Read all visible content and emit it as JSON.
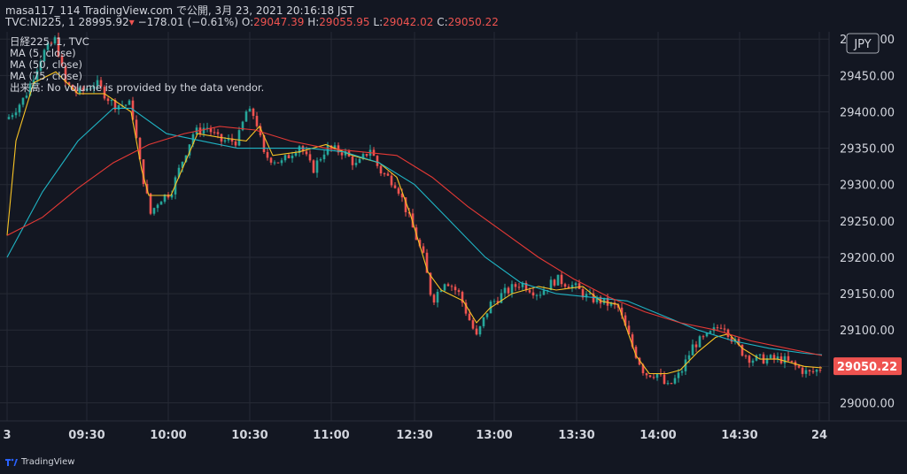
{
  "header": {
    "line1": "masa117_114 TradingView.com で公開, 3月 23, 2021 20:16:18 JST",
    "symbol": "TVC:NI225, 1",
    "last": "28995.92",
    "change": "−178.01 (−0.61%)",
    "o_label": "O:",
    "o_value": "29047.39",
    "h_label": "H:",
    "h_value": "29055.95",
    "l_label": "L:",
    "l_value": "29042.02",
    "c_label": "C:",
    "c_value": "29050.22"
  },
  "legend": [
    "日経225, 1, TVC",
    "MA (5, close)",
    "MA (50, close)",
    "MA (75, close)",
    "出来高: No volume is provided by the data vendor."
  ],
  "currency_label": "JPY",
  "price_tag": "29050.22",
  "footer": {
    "brand": "TradingView"
  },
  "colors": {
    "background": "#131722",
    "up": "#26a69a",
    "down": "#ef5350",
    "ma5": "#f7c325",
    "ma50": "#1fb4c4",
    "ma75": "#e53935",
    "grid": "#262a35"
  },
  "chart_data": {
    "type": "candlestick",
    "ylim": [
      28975,
      29510
    ],
    "y_ticks": [
      "29000.00",
      "29050.00",
      "29100.00",
      "29150.00",
      "29200.00",
      "29250.00",
      "29300.00",
      "29350.00",
      "29400.00",
      "29450.00",
      "29500.00"
    ],
    "x_ticks": [
      "3",
      "09:30",
      "10:00",
      "10:30",
      "11:00",
      "12:30",
      "13:00",
      "13:30",
      "14:00",
      "14:30",
      "24"
    ],
    "grid": true,
    "series": [
      {
        "name": "MA (5, close)",
        "points": [
          [
            0,
            29230
          ],
          [
            10,
            29360
          ],
          [
            30,
            29440
          ],
          [
            55,
            29455
          ],
          [
            80,
            29425
          ],
          [
            110,
            29425
          ],
          [
            140,
            29400
          ],
          [
            152,
            29320
          ],
          [
            160,
            29285
          ],
          [
            185,
            29285
          ],
          [
            215,
            29370
          ],
          [
            240,
            29365
          ],
          [
            270,
            29360
          ],
          [
            285,
            29380
          ],
          [
            300,
            29340
          ],
          [
            330,
            29345
          ],
          [
            360,
            29355
          ],
          [
            390,
            29340
          ],
          [
            420,
            29330
          ],
          [
            440,
            29310
          ],
          [
            455,
            29260
          ],
          [
            475,
            29180
          ],
          [
            490,
            29155
          ],
          [
            515,
            29140
          ],
          [
            530,
            29110
          ],
          [
            545,
            29130
          ],
          [
            570,
            29150
          ],
          [
            600,
            29160
          ],
          [
            620,
            29155
          ],
          [
            650,
            29160
          ],
          [
            670,
            29140
          ],
          [
            690,
            29135
          ],
          [
            710,
            29065
          ],
          [
            725,
            29040
          ],
          [
            745,
            29040
          ],
          [
            760,
            29045
          ],
          [
            780,
            29070
          ],
          [
            800,
            29090
          ],
          [
            815,
            29095
          ],
          [
            830,
            29075
          ],
          [
            850,
            29060
          ],
          [
            870,
            29060
          ],
          [
            900,
            29050
          ],
          [
            920,
            29048
          ]
        ]
      },
      {
        "name": "MA (50, close)",
        "points": [
          [
            0,
            29200
          ],
          [
            40,
            29290
          ],
          [
            80,
            29360
          ],
          [
            120,
            29405
          ],
          [
            140,
            29405
          ],
          [
            180,
            29370
          ],
          [
            220,
            29360
          ],
          [
            260,
            29350
          ],
          [
            300,
            29350
          ],
          [
            340,
            29350
          ],
          [
            380,
            29345
          ],
          [
            420,
            29330
          ],
          [
            460,
            29300
          ],
          [
            500,
            29250
          ],
          [
            540,
            29200
          ],
          [
            580,
            29165
          ],
          [
            620,
            29150
          ],
          [
            660,
            29145
          ],
          [
            700,
            29140
          ],
          [
            740,
            29120
          ],
          [
            780,
            29100
          ],
          [
            820,
            29085
          ],
          [
            860,
            29075
          ],
          [
            900,
            29068
          ],
          [
            920,
            29066
          ]
        ]
      },
      {
        "name": "MA (75, close)",
        "points": [
          [
            0,
            29230
          ],
          [
            40,
            29255
          ],
          [
            80,
            29295
          ],
          [
            120,
            29330
          ],
          [
            160,
            29355
          ],
          [
            200,
            29370
          ],
          [
            240,
            29380
          ],
          [
            280,
            29375
          ],
          [
            320,
            29360
          ],
          [
            360,
            29350
          ],
          [
            400,
            29345
          ],
          [
            440,
            29340
          ],
          [
            480,
            29310
          ],
          [
            520,
            29270
          ],
          [
            560,
            29235
          ],
          [
            600,
            29200
          ],
          [
            640,
            29170
          ],
          [
            680,
            29145
          ],
          [
            720,
            29125
          ],
          [
            760,
            29110
          ],
          [
            800,
            29100
          ],
          [
            840,
            29085
          ],
          [
            880,
            29075
          ],
          [
            920,
            29065
          ]
        ]
      }
    ],
    "anchors": [
      [
        0,
        29390
      ],
      [
        20,
        29420
      ],
      [
        40,
        29480
      ],
      [
        55,
        29500
      ],
      [
        65,
        29440
      ],
      [
        80,
        29425
      ],
      [
        100,
        29440
      ],
      [
        120,
        29410
      ],
      [
        140,
        29410
      ],
      [
        150,
        29330
      ],
      [
        162,
        29260
      ],
      [
        172,
        29280
      ],
      [
        185,
        29290
      ],
      [
        200,
        29340
      ],
      [
        210,
        29370
      ],
      [
        225,
        29380
      ],
      [
        240,
        29360
      ],
      [
        260,
        29360
      ],
      [
        270,
        29400
      ],
      [
        280,
        29395
      ],
      [
        290,
        29340
      ],
      [
        310,
        29330
      ],
      [
        330,
        29355
      ],
      [
        345,
        29320
      ],
      [
        360,
        29350
      ],
      [
        380,
        29345
      ],
      [
        395,
        29325
      ],
      [
        410,
        29350
      ],
      [
        420,
        29320
      ],
      [
        440,
        29300
      ],
      [
        455,
        29250
      ],
      [
        470,
        29200
      ],
      [
        480,
        29140
      ],
      [
        495,
        29170
      ],
      [
        510,
        29150
      ],
      [
        520,
        29120
      ],
      [
        530,
        29090
      ],
      [
        545,
        29135
      ],
      [
        560,
        29150
      ],
      [
        580,
        29165
      ],
      [
        600,
        29150
      ],
      [
        620,
        29170
      ],
      [
        640,
        29160
      ],
      [
        655,
        29145
      ],
      [
        670,
        29140
      ],
      [
        690,
        29130
      ],
      [
        705,
        29080
      ],
      [
        720,
        29040
      ],
      [
        735,
        29040
      ],
      [
        745,
        29020
      ],
      [
        760,
        29040
      ],
      [
        775,
        29080
      ],
      [
        790,
        29090
      ],
      [
        808,
        29110
      ],
      [
        820,
        29085
      ],
      [
        830,
        29070
      ],
      [
        840,
        29060
      ],
      [
        860,
        29060
      ],
      [
        875,
        29060
      ],
      [
        890,
        29050
      ],
      [
        905,
        29040
      ],
      [
        915,
        29045
      ],
      [
        920,
        29050
      ]
    ]
  }
}
